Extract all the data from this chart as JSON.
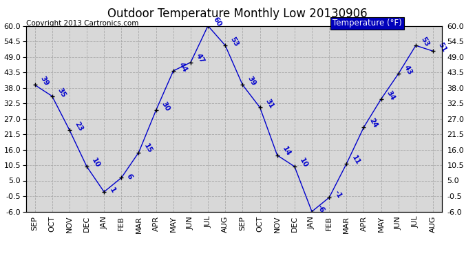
{
  "title": "Outdoor Temperature Monthly Low 20130906",
  "copyright": "Copyright 2013 Cartronics.com",
  "legend_label": "Temperature (°F)",
  "x_labels": [
    "SEP",
    "OCT",
    "NOV",
    "DEC",
    "JAN",
    "FEB",
    "MAR",
    "APR",
    "MAY",
    "JUN",
    "JUL",
    "AUG",
    "SEP",
    "OCT",
    "NOV",
    "DEC",
    "JAN",
    "FEB",
    "MAR",
    "APR",
    "MAY",
    "JUN",
    "JUL",
    "AUG"
  ],
  "y_values": [
    39,
    35,
    23,
    10,
    1,
    6,
    15,
    30,
    44,
    47,
    60,
    53,
    39,
    31,
    14,
    10,
    -6,
    -1,
    11,
    24,
    34,
    43,
    53,
    51
  ],
  "ylim": [
    -6.0,
    60.0
  ],
  "yticks": [
    -6.0,
    -0.5,
    5.0,
    10.5,
    16.0,
    21.5,
    27.0,
    32.5,
    38.0,
    43.5,
    49.0,
    54.5,
    60.0
  ],
  "ytick_labels": [
    "-6.0",
    "-0.5",
    "5.0",
    "10.5",
    "16.0",
    "21.5",
    "27.0",
    "32.5",
    "38.0",
    "43.5",
    "49.0",
    "54.5",
    "60.0"
  ],
  "line_color": "#0000cc",
  "marker_color": "black",
  "bg_color": "#d8d8d8",
  "grid_color": "#aaaaaa",
  "title_color": "black",
  "label_color": "#0000cc",
  "legend_bg": "#0000bb",
  "legend_text_color": "white",
  "title_fontsize": 12,
  "copyright_fontsize": 7.5,
  "label_fontsize": 7.5,
  "tick_fontsize": 8
}
